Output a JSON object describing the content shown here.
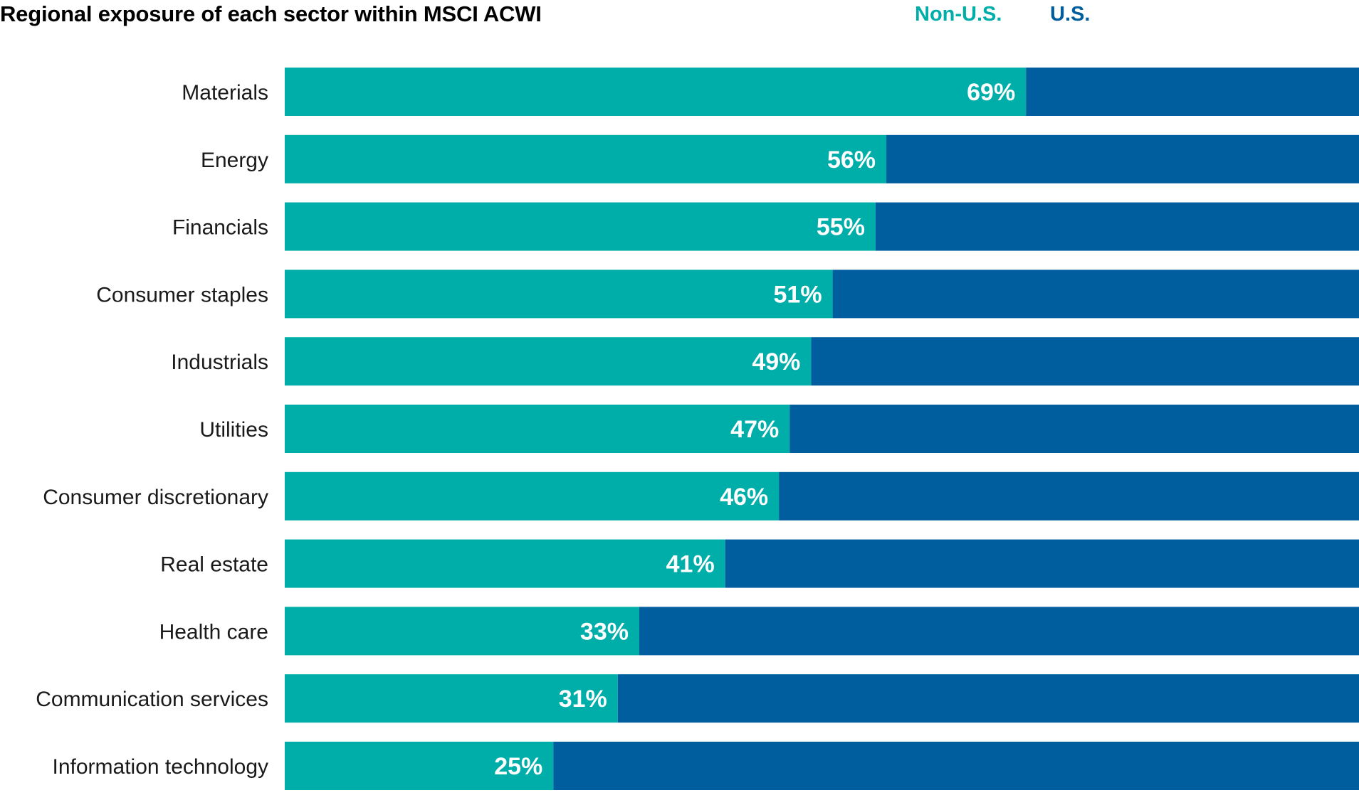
{
  "chart_data": {
    "type": "bar",
    "orientation": "horizontal",
    "stacked": true,
    "title": "Regional exposure of each sector within MSCI ACWI",
    "categories": [
      "Materials",
      "Energy",
      "Financials",
      "Consumer staples",
      "Industrials",
      "Utilities",
      "Consumer discretionary",
      "Real estate",
      "Health care",
      "Communication services",
      "Information technology"
    ],
    "series": [
      {
        "name": "Non-U.S.",
        "values": [
          69,
          56,
          55,
          51,
          49,
          47,
          46,
          41,
          33,
          31,
          25
        ],
        "color": "#00AEA9",
        "labels": [
          "69%",
          "56%",
          "55%",
          "51%",
          "49%",
          "47%",
          "46%",
          "41%",
          "33%",
          "31%",
          "25%"
        ]
      },
      {
        "name": "U.S.",
        "values": [
          31,
          44,
          45,
          49,
          51,
          53,
          54,
          59,
          67,
          69,
          75
        ],
        "color": "#005E9E"
      }
    ],
    "xlim": [
      0,
      100
    ],
    "grid": false,
    "legend_position": "top-right"
  },
  "colors": {
    "non_us": "#00AEA9",
    "us": "#005E9E",
    "title": "#000000",
    "label": "#1a1a1a",
    "value_label": "#ffffff"
  }
}
